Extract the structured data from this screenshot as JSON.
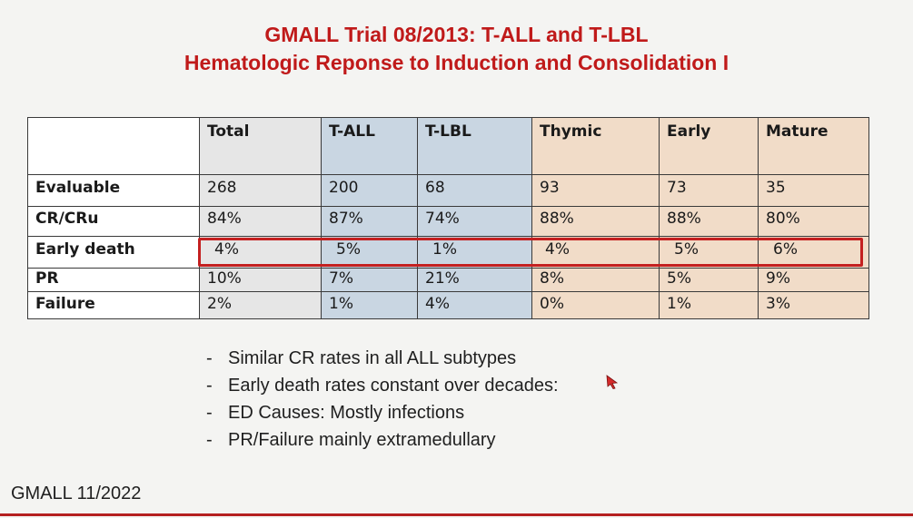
{
  "title": {
    "line1": "GMALL Trial 08/2013: T-ALL and T-LBL",
    "line2": "Hematologic Reponse to Induction and Consolidation I"
  },
  "table": {
    "headers": [
      "",
      "Total",
      "T-ALL",
      "T-LBL",
      "Thymic",
      "Early",
      "Mature"
    ],
    "rows": [
      {
        "label": "Evaluable",
        "values": [
          "268",
          "200",
          "68",
          "93",
          "73",
          "35"
        ]
      },
      {
        "label": "CR/CRu",
        "values": [
          "84%",
          "87%",
          "74%",
          "88%",
          "88%",
          "80%"
        ]
      },
      {
        "label": "Early death",
        "values": [
          "4%",
          "5%",
          "1%",
          "4%",
          "5%",
          "6%"
        ]
      },
      {
        "label": "PR",
        "values": [
          "10%",
          "7%",
          "21%",
          "8%",
          "5%",
          "9%"
        ]
      },
      {
        "label": "Failure",
        "values": [
          "2%",
          "1%",
          "4%",
          "0%",
          "1%",
          "3%"
        ]
      }
    ],
    "highlighted_row": "Early death",
    "colors": {
      "total_column": "#e6e6e6",
      "t_all_lbl_columns": "#c9d6e2",
      "subtype_columns": "#f1dcc8",
      "highlight_border": "#c42020"
    }
  },
  "notes": {
    "dash": "-",
    "items": [
      "Similar CR rates in all ALL subtypes",
      "Early death rates constant over decades:",
      "ED Causes: Mostly infections",
      "PR/Failure mainly extramedullary"
    ]
  },
  "footer": "GMALL 11/2022",
  "colors": {
    "title": "#c01a1a",
    "background": "#f4f4f2",
    "bottom_rule": "#b52020"
  },
  "icons": {
    "pointer": "laser-pointer-icon"
  }
}
